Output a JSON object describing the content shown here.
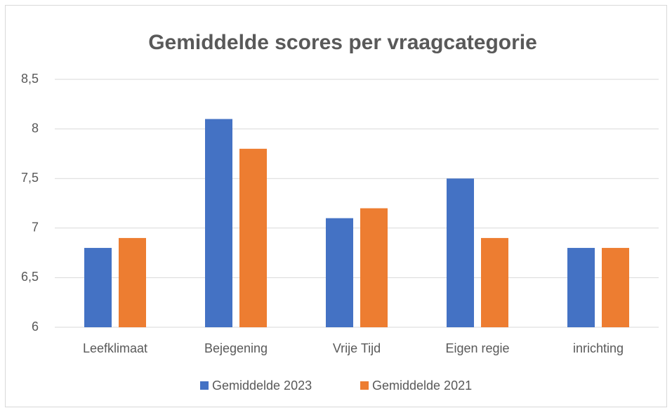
{
  "chart_data": {
    "type": "bar",
    "title": "Gemiddelde scores per vraagcategorie",
    "categories": [
      "Leefklimaat",
      "Bejegening",
      "Vrije Tijd",
      "Eigen regie",
      "inrichting"
    ],
    "series": [
      {
        "name": "Gemiddelde 2023",
        "color": "#4472c4",
        "values": [
          6.8,
          8.1,
          7.1,
          7.5,
          6.8
        ]
      },
      {
        "name": "Gemiddelde 2021",
        "color": "#ed7d31",
        "values": [
          6.9,
          7.8,
          7.2,
          6.9,
          6.8
        ]
      }
    ],
    "ylim": [
      6,
      8.5
    ],
    "yticks": [
      6,
      {
        "value": 6.5,
        "label": "6,5"
      },
      7,
      {
        "value": 7.5,
        "label": "7,5"
      },
      8,
      {
        "value": 8.5,
        "label": "8,5"
      }
    ],
    "grid": true,
    "legend": "bottom"
  }
}
